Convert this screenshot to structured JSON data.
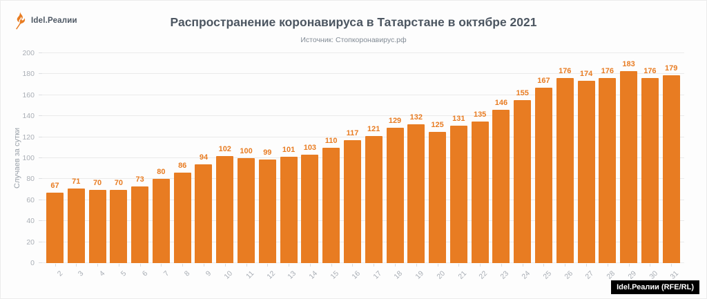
{
  "logo": {
    "text": "Idel.Реалии"
  },
  "header": {
    "title": "Распространение коронавируса в Татарстане в октябре 2021",
    "subtitle": "Источник: Стопкоронавирус.рф"
  },
  "chart_data": {
    "type": "bar",
    "categories": [
      "2",
      "3",
      "4",
      "5",
      "6",
      "7",
      "8",
      "9",
      "10",
      "11",
      "12",
      "13",
      "14",
      "15",
      "16",
      "17",
      "18",
      "19",
      "20",
      "21",
      "22",
      "23",
      "24",
      "25",
      "26",
      "27",
      "28",
      "29",
      "30",
      "31"
    ],
    "values": [
      67,
      71,
      70,
      70,
      73,
      80,
      86,
      94,
      102,
      100,
      99,
      101,
      103,
      110,
      117,
      121,
      129,
      132,
      125,
      131,
      135,
      146,
      155,
      167,
      176,
      174,
      176,
      183,
      176,
      179
    ],
    "title": "Распространение коронавируса в Татарстане в октябре 2021",
    "xlabel": "",
    "ylabel": "Случаев за сутки",
    "ylim": [
      0,
      200
    ],
    "ytick_step": 20,
    "grid": true,
    "legend": false,
    "bar_color": "#E87C22",
    "value_label_color": "#E87C22"
  },
  "footer": {
    "credit": "Idel.Реалии (RFE/RL)"
  },
  "colors": {
    "accent": "#E87C22",
    "title": "#4C5661",
    "subtitle": "#828B95",
    "axis_text": "#A9AEB5",
    "grid": "#EAEAEA"
  }
}
